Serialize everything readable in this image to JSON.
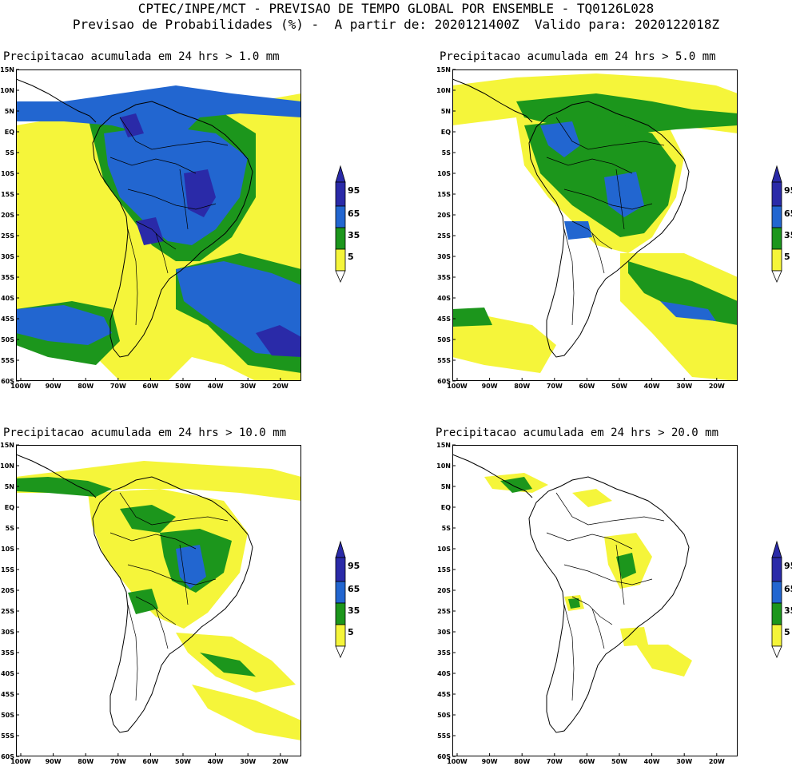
{
  "header": {
    "line1": "CPTEC/INPE/MCT - PREVISAO DE TEMPO GLOBAL POR ENSEMBLE - TQ0126L028",
    "line2": "Previsao de Probabilidades (%) -  A partir de: 2020121400Z  Valido para: 2020122018Z"
  },
  "axes": {
    "lat_labels": [
      "15N",
      "10N",
      "5N",
      "EQ",
      "5S",
      "10S",
      "15S",
      "20S",
      "25S",
      "30S",
      "35S",
      "40S",
      "45S",
      "50S",
      "55S",
      "60S"
    ],
    "lon_labels": [
      "100W",
      "90W",
      "80W",
      "70W",
      "60W",
      "50W",
      "40W",
      "30W",
      "20W"
    ]
  },
  "legend": {
    "labels": [
      "95",
      "65",
      "35",
      "5"
    ],
    "colors": {
      "c95": "#2a2aa8",
      "c65": "#2266d0",
      "c35": "#1c961c",
      "c5": "#f5f53a"
    }
  },
  "panels": [
    {
      "title": "Precipitacao acumulada em 24 hrs > 1.0 mm"
    },
    {
      "title": "Precipitacao acumulada em 24 hrs > 5.0 mm"
    },
    {
      "title": "Precipitacao acumulada em 24 hrs > 10.0 mm"
    },
    {
      "title": "Precipitacao acumulada em 24 hrs > 20.0 mm"
    }
  ]
}
